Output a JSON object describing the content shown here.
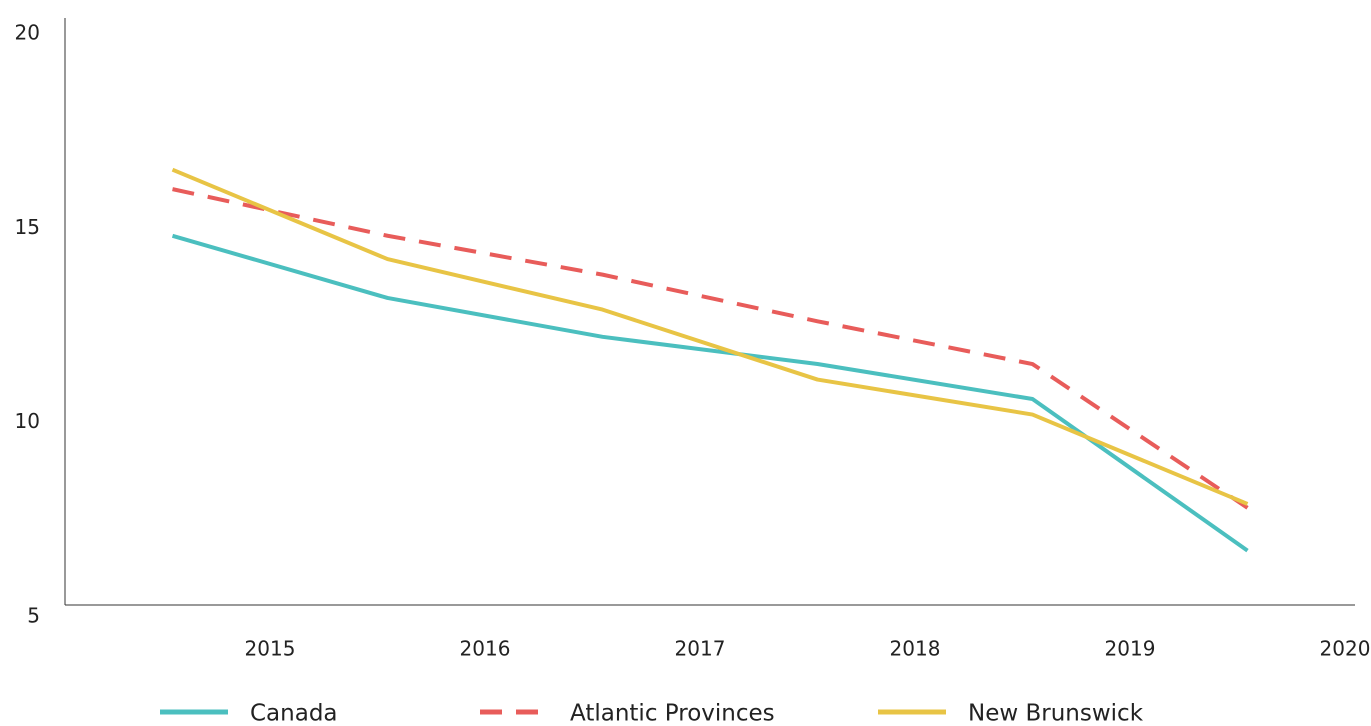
{
  "chart_data": {
    "type": "line",
    "categories": [
      "2015",
      "2016",
      "2017",
      "2018",
      "2019",
      "2020"
    ],
    "series": [
      {
        "name": "Canada",
        "color": "#4bbfbf",
        "dashed": false,
        "values": [
          14.5,
          12.9,
          11.9,
          11.2,
          10.3,
          6.4
        ]
      },
      {
        "name": "Atlantic Provinces",
        "color": "#e85c5a",
        "dashed": true,
        "values": [
          15.7,
          14.5,
          13.5,
          12.3,
          11.2,
          7.5
        ]
      },
      {
        "name": "New Brunswick",
        "color": "#e8c445",
        "dashed": false,
        "values": [
          16.2,
          13.9,
          12.6,
          10.8,
          9.9,
          7.6
        ]
      }
    ],
    "ylim": [
      5,
      20
    ],
    "yticks": [
      5,
      10,
      15,
      20
    ],
    "grid": false
  }
}
